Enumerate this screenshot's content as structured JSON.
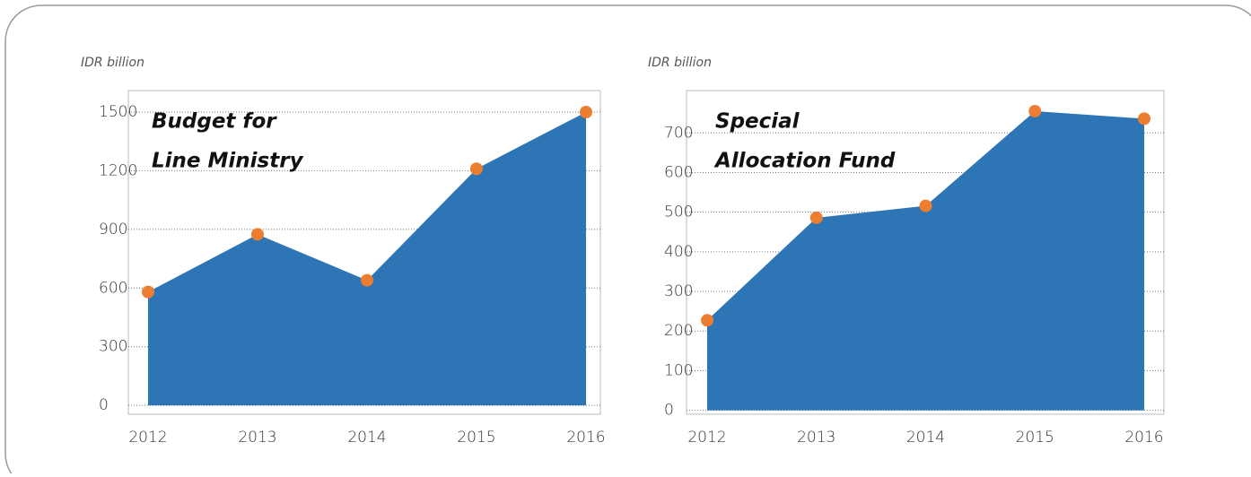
{
  "chart_data": [
    {
      "type": "area",
      "title": [
        "Budget for",
        "Line Ministry"
      ],
      "y_label": "IDR billion",
      "categories": [
        "2012",
        "2013",
        "2014",
        "2015",
        "2016"
      ],
      "series": [
        {
          "name": "Budget for Line Ministry",
          "color": "#2e75b6",
          "marker_color": "#ed7d31",
          "values": [
            580,
            875,
            640,
            1210,
            1500
          ]
        }
      ],
      "ylim": [
        -45,
        1610
      ],
      "yticks": [
        0,
        300,
        600,
        900,
        1200,
        1500
      ],
      "grid": true
    },
    {
      "type": "area",
      "title": [
        "Special",
        "Allocation Fund"
      ],
      "y_label": "IDR billion",
      "categories": [
        "2012",
        "2013",
        "2014",
        "2015",
        "2016"
      ],
      "series": [
        {
          "name": "Special Allocation Fund",
          "color": "#2e75b6",
          "marker_color": "#ed7d31",
          "values": [
            227,
            486,
            516,
            755,
            736
          ]
        }
      ],
      "ylim": [
        -10,
        807
      ],
      "yticks": [
        0,
        100,
        200,
        300,
        400,
        500,
        600,
        700
      ],
      "grid": true
    }
  ]
}
